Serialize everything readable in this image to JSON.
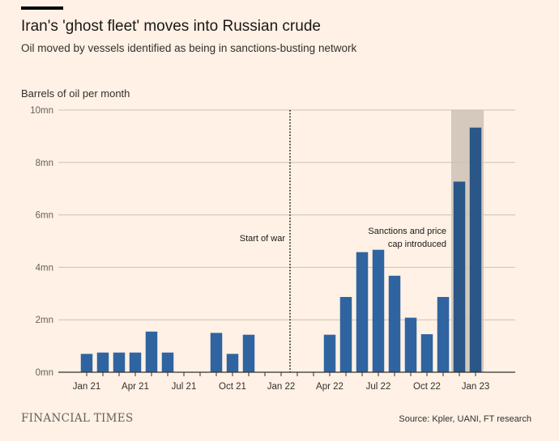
{
  "header": {
    "title": "Iran's 'ghost fleet' moves into Russian crude",
    "subtitle": "Oil moved by vessels identified as being in sanctions-busting network"
  },
  "footer": {
    "logo": "FINANCIAL TIMES",
    "source": "Source: Kpler, UANI, FT research"
  },
  "chart_data": {
    "type": "bar",
    "title": "Iran's 'ghost fleet' moves into Russian crude",
    "subtitle": "Oil moved by vessels identified as being in sanctions-busting network",
    "ylabel": "Barrels of oil per month",
    "xlabel": "",
    "ylim": [
      0,
      10
    ],
    "y_unit": "million barrels",
    "y_ticks": [
      0,
      2,
      4,
      6,
      8,
      10
    ],
    "y_tick_labels": [
      "0mn",
      "2mn",
      "4mn",
      "6mn",
      "8mn",
      "10mn"
    ],
    "grid": true,
    "bar_color": "#2f64a0",
    "highlight_bar_color": "#2a5688",
    "shade_color": "#d5c8bc",
    "categories": [
      "Jan 21",
      "Feb 21",
      "Mar 21",
      "Apr 21",
      "May 21",
      "Jun 21",
      "Jul 21",
      "Aug 21",
      "Sep 21",
      "Oct 21",
      "Nov 21",
      "Dec 21",
      "Jan 22",
      "Feb 22",
      "Mar 22",
      "Apr 22",
      "May 22",
      "Jun 22",
      "Jul 22",
      "Aug 22",
      "Sep 22",
      "Oct 22",
      "Nov 22",
      "Dec 22",
      "Jan 23"
    ],
    "values": [
      0.7,
      0.75,
      0.75,
      0.75,
      1.55,
      0.75,
      0,
      0,
      1.5,
      0.7,
      1.43,
      0,
      0,
      0,
      0,
      1.43,
      2.87,
      4.58,
      4.67,
      3.68,
      2.08,
      1.45,
      2.87,
      7.27,
      9.33
    ],
    "x_tick_labels": [
      {
        "index": 0,
        "label": "Jan 21"
      },
      {
        "index": 3,
        "label": "Apr 21"
      },
      {
        "index": 6,
        "label": "Jul 21"
      },
      {
        "index": 9,
        "label": "Oct 21"
      },
      {
        "index": 12,
        "label": "Jan 22"
      },
      {
        "index": 15,
        "label": "Apr 22"
      },
      {
        "index": 18,
        "label": "Jul 22"
      },
      {
        "index": 21,
        "label": "Oct 22"
      },
      {
        "index": 24,
        "label": "Jan 23"
      }
    ],
    "annotations": [
      {
        "type": "vline",
        "at_index": 13,
        "position": "start",
        "label": "Start of war"
      },
      {
        "type": "shaded_band",
        "from_index": 23,
        "to_index": 24,
        "label": "Sanctions and price cap introduced"
      }
    ]
  }
}
